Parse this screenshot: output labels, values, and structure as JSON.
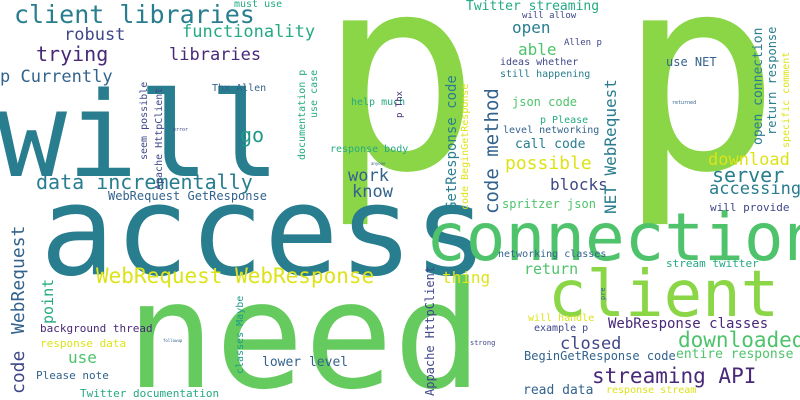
{
  "palette": {
    "background": "#ffffff",
    "lime": "#8bd646",
    "green": "#4ec36b",
    "light-green": "#65cb5e",
    "yellow": "#dde318",
    "teal": "#287d8e",
    "dark-teal": "#1f9a8a",
    "blue": "#33638d",
    "indigo": "#3f4788",
    "purple": "#482878",
    "dark-purple": "#440154",
    "cyan": "#24aa83"
  },
  "words": [
    {
      "text": "p",
      "color": "lime"
    },
    {
      "text": "p",
      "color": "lime"
    },
    {
      "text": "will",
      "color": "teal"
    },
    {
      "text": "access",
      "color": "teal"
    },
    {
      "text": "need",
      "color": "light-green"
    },
    {
      "text": "connection",
      "color": "green"
    },
    {
      "text": "client",
      "color": "lime"
    },
    {
      "text": "client libraries",
      "color": "teal"
    },
    {
      "text": "functionality",
      "color": "cyan"
    },
    {
      "text": "robust",
      "color": "indigo"
    },
    {
      "text": "trying",
      "color": "purple"
    },
    {
      "text": "libraries",
      "color": "purple"
    },
    {
      "text": "p Currently",
      "color": "blue"
    },
    {
      "text": "must use",
      "color": "cyan"
    },
    {
      "text": "go",
      "color": "dark-teal"
    },
    {
      "text": "data incrementally",
      "color": "teal"
    },
    {
      "text": "WebRequest WebResponse",
      "color": "yellow"
    },
    {
      "text": "WebRequest GetResponse",
      "color": "blue"
    },
    {
      "text": "WebRequest",
      "color": "blue"
    },
    {
      "text": "code",
      "color": "indigo"
    },
    {
      "text": "point",
      "color": "cyan"
    },
    {
      "text": "background thread",
      "color": "purple"
    },
    {
      "text": "response data",
      "color": "yellow"
    },
    {
      "text": "use",
      "color": "green"
    },
    {
      "text": "Please note",
      "color": "blue"
    },
    {
      "text": "Twitter documentation",
      "color": "cyan"
    },
    {
      "text": "seem possible",
      "color": "indigo"
    },
    {
      "text": "Apache HttpClient",
      "color": "indigo"
    },
    {
      "text": "Thx Allen",
      "color": "blue"
    },
    {
      "text": "error",
      "color": "indigo"
    },
    {
      "text": "documentation p",
      "color": "cyan"
    },
    {
      "text": "use case",
      "color": "cyan"
    },
    {
      "text": "help much",
      "color": "cyan"
    },
    {
      "text": "p Thx",
      "color": "purple"
    },
    {
      "text": "response body",
      "color": "cyan"
    },
    {
      "text": "work",
      "color": "blue"
    },
    {
      "text": "know",
      "color": "blue"
    },
    {
      "text": "Twitter streaming",
      "color": "cyan"
    },
    {
      "text": "will allow",
      "color": "indigo"
    },
    {
      "text": "open",
      "color": "teal"
    },
    {
      "text": "able",
      "color": "green"
    },
    {
      "text": "ideas whether",
      "color": "indigo"
    },
    {
      "text": "still happening",
      "color": "teal"
    },
    {
      "text": "Allen p",
      "color": "indigo"
    },
    {
      "text": "json code",
      "color": "green"
    },
    {
      "text": "p Please",
      "color": "cyan"
    },
    {
      "text": "level networking",
      "color": "blue"
    },
    {
      "text": "call code",
      "color": "teal"
    },
    {
      "text": "possible",
      "color": "yellow"
    },
    {
      "text": "GetResponse code",
      "color": "teal"
    },
    {
      "text": "code method",
      "color": "blue"
    },
    {
      "text": "blocks",
      "color": "indigo"
    },
    {
      "text": "spritzer json",
      "color": "green"
    },
    {
      "text": "return",
      "color": "green"
    },
    {
      "text": "thing",
      "color": "yellow"
    },
    {
      "text": "closed",
      "color": "indigo"
    },
    {
      "text": "streaming API",
      "color": "purple"
    },
    {
      "text": "read data",
      "color": "blue"
    },
    {
      "text": "response stream",
      "color": "yellow"
    },
    {
      "text": "lower level",
      "color": "blue"
    },
    {
      "text": "classes Maybe",
      "color": "dark-teal"
    },
    {
      "text": "example p",
      "color": "indigo"
    },
    {
      "text": "will handle",
      "color": "yellow"
    },
    {
      "text": "WebResponse classes",
      "color": "purple"
    },
    {
      "text": "BeginGetResponse code",
      "color": "blue"
    },
    {
      "text": "entire response",
      "color": "green"
    },
    {
      "text": "downloaded",
      "color": "green"
    },
    {
      "text": "download",
      "color": "yellow"
    },
    {
      "text": "server",
      "color": "teal"
    },
    {
      "text": "accessing",
      "color": "teal"
    },
    {
      "text": "will provide",
      "color": "indigo"
    },
    {
      "text": "stream twitter",
      "color": "cyan"
    },
    {
      "text": "networking classes",
      "color": "blue"
    },
    {
      "text": "code BeginGetResponse",
      "color": "yellow"
    },
    {
      "text": "NET WebRequest",
      "color": "teal"
    },
    {
      "text": "use NET",
      "color": "blue"
    },
    {
      "text": "open connection",
      "color": "teal"
    },
    {
      "text": "return response",
      "color": "teal"
    },
    {
      "text": "specific comment",
      "color": "yellow"
    },
    {
      "text": "Appache HttpClient",
      "color": "indigo"
    },
    {
      "text": "strong",
      "color": "indigo"
    },
    {
      "text": "pre",
      "color": "blue"
    },
    {
      "text": "returned",
      "color": "blue"
    },
    {
      "text": "anyone",
      "color": "blue"
    },
    {
      "text": "followup",
      "color": "blue"
    }
  ]
}
